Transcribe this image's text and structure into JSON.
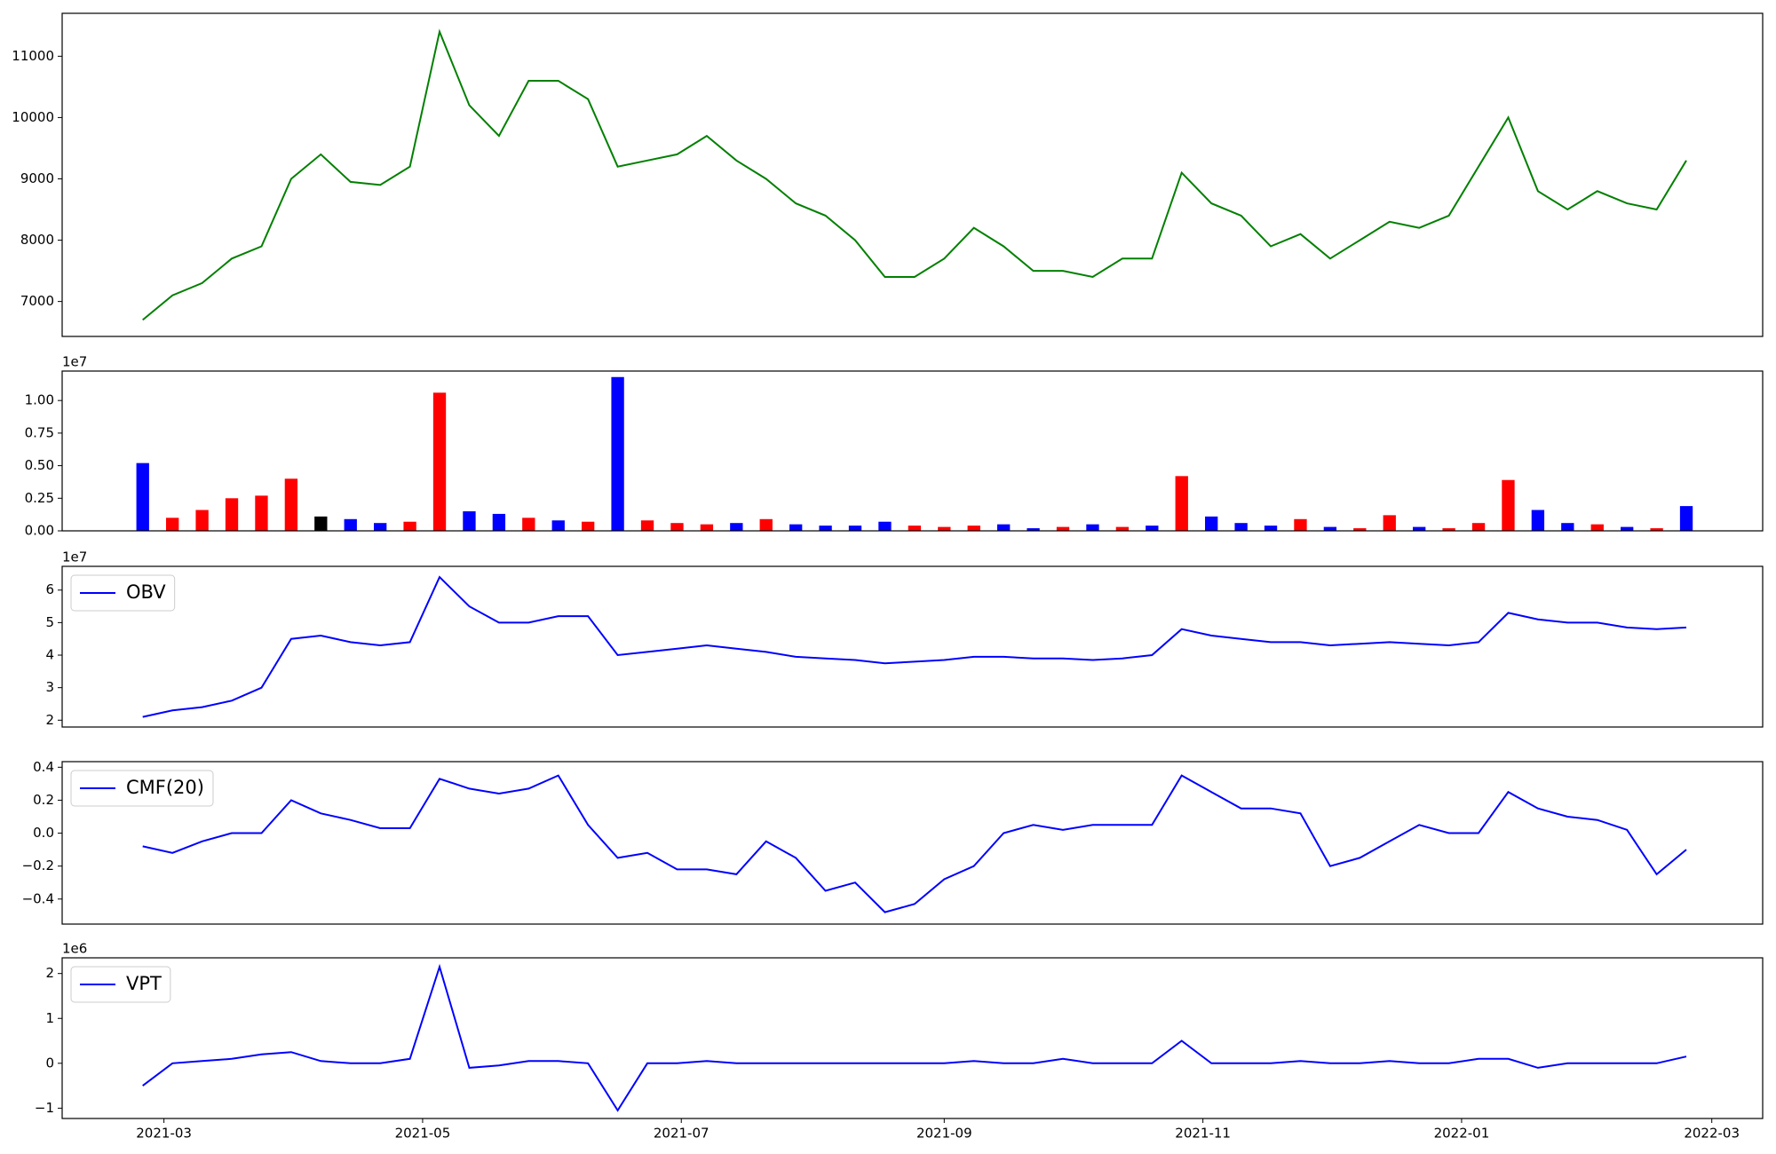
{
  "chart_data": [
    {
      "type": "line",
      "series": [
        {
          "color": "#008000",
          "values": [
            6700,
            7100,
            7300,
            7700,
            7900,
            9000,
            9400,
            8950,
            8900,
            9200,
            11400,
            10200,
            9700,
            10600,
            10600,
            10300,
            9200,
            9300,
            9400,
            9700,
            9300,
            9000,
            8600,
            8400,
            8000,
            7400,
            7400,
            7700,
            8200,
            7900,
            7500,
            7500,
            7400,
            7700,
            7700,
            9100,
            8600,
            8400,
            7900,
            8100,
            7700,
            8000,
            8300,
            8200,
            8400,
            9200,
            10000,
            8800,
            8500,
            8800,
            8600,
            8500,
            9300
          ]
        }
      ],
      "x": [
        "2021-02-24",
        "2021-03-03",
        "2021-03-10",
        "2021-03-17",
        "2021-03-24",
        "2021-03-31",
        "2021-04-07",
        "2021-04-14",
        "2021-04-21",
        "2021-04-28",
        "2021-05-05",
        "2021-05-12",
        "2021-05-19",
        "2021-05-26",
        "2021-06-02",
        "2021-06-09",
        "2021-06-16",
        "2021-06-23",
        "2021-06-30",
        "2021-07-07",
        "2021-07-14",
        "2021-07-21",
        "2021-07-28",
        "2021-08-04",
        "2021-08-11",
        "2021-08-18",
        "2021-08-25",
        "2021-09-01",
        "2021-09-08",
        "2021-09-15",
        "2021-09-22",
        "2021-09-29",
        "2021-10-06",
        "2021-10-13",
        "2021-10-20",
        "2021-10-27",
        "2021-11-03",
        "2021-11-10",
        "2021-11-17",
        "2021-11-24",
        "2021-12-01",
        "2021-12-08",
        "2021-12-15",
        "2021-12-22",
        "2021-12-29",
        "2022-01-05",
        "2022-01-12",
        "2022-01-19",
        "2022-01-26",
        "2022-02-02",
        "2022-02-09",
        "2022-02-16",
        "2022-02-23"
      ],
      "xlim": [
        "2021-02-05",
        "2022-03-13"
      ],
      "ylim": [
        6430,
        11700
      ],
      "yticks": [
        7000,
        8000,
        9000,
        10000,
        11000
      ]
    },
    {
      "type": "bar",
      "offset_label": "1e7",
      "series": [
        {
          "values": [
            5200000,
            1000000,
            1600000,
            2500000,
            2700000,
            4000000,
            1100000,
            900000,
            600000,
            700000,
            10600000,
            1500000,
            1300000,
            1000000,
            800000,
            700000,
            11800000,
            800000,
            600000,
            500000,
            600000,
            900000,
            500000,
            400000,
            400000,
            700000,
            400000,
            300000,
            400000,
            500000,
            200000,
            300000,
            500000,
            300000,
            400000,
            4200000,
            1100000,
            600000,
            400000,
            900000,
            300000,
            200000,
            1200000,
            300000,
            200000,
            600000,
            3900000,
            1600000,
            600000,
            500000,
            300000,
            200000,
            1900000
          ],
          "colors": [
            "blue",
            "red",
            "red",
            "red",
            "red",
            "red",
            "black",
            "blue",
            "blue",
            "red",
            "red",
            "blue",
            "blue",
            "red",
            "blue",
            "red",
            "blue",
            "red",
            "red",
            "red",
            "blue",
            "red",
            "blue",
            "blue",
            "blue",
            "blue",
            "red",
            "red",
            "red",
            "blue",
            "blue",
            "red",
            "blue",
            "red",
            "blue",
            "red",
            "blue",
            "blue",
            "blue",
            "red",
            "blue",
            "red",
            "red",
            "blue",
            "red",
            "red",
            "red",
            "blue",
            "blue",
            "red",
            "blue",
            "red",
            "blue"
          ]
        }
      ],
      "x": [
        "2021-02-24",
        "2021-03-03",
        "2021-03-10",
        "2021-03-17",
        "2021-03-24",
        "2021-03-31",
        "2021-04-07",
        "2021-04-14",
        "2021-04-21",
        "2021-04-28",
        "2021-05-05",
        "2021-05-12",
        "2021-05-19",
        "2021-05-26",
        "2021-06-02",
        "2021-06-09",
        "2021-06-16",
        "2021-06-23",
        "2021-06-30",
        "2021-07-07",
        "2021-07-14",
        "2021-07-21",
        "2021-07-28",
        "2021-08-04",
        "2021-08-11",
        "2021-08-18",
        "2021-08-25",
        "2021-09-01",
        "2021-09-08",
        "2021-09-15",
        "2021-09-22",
        "2021-09-29",
        "2021-10-06",
        "2021-10-13",
        "2021-10-20",
        "2021-10-27",
        "2021-11-03",
        "2021-11-10",
        "2021-11-17",
        "2021-11-24",
        "2021-12-01",
        "2021-12-08",
        "2021-12-15",
        "2021-12-22",
        "2021-12-29",
        "2022-01-05",
        "2022-01-12",
        "2022-01-19",
        "2022-01-26",
        "2022-02-02",
        "2022-02-09",
        "2022-02-16",
        "2022-02-23"
      ],
      "xlim": [
        "2021-02-05",
        "2022-03-13"
      ],
      "ylim": [
        0,
        12260000
      ],
      "yticks": [
        {
          "value": 0,
          "label": "0.00"
        },
        {
          "value": 2500000,
          "label": "0.25"
        },
        {
          "value": 5000000,
          "label": "0.50"
        },
        {
          "value": 7500000,
          "label": "0.75"
        },
        {
          "value": 10000000,
          "label": "1.00"
        }
      ]
    },
    {
      "type": "line",
      "offset_label": "1e7",
      "legend": "upper left",
      "series": [
        {
          "name": "OBV",
          "color": "#0000ff",
          "values": [
            21000000,
            23000000,
            24000000,
            26000000,
            30000000,
            45000000,
            46000000,
            44000000,
            43000000,
            44000000,
            64000000,
            55000000,
            50000000,
            50000000,
            52000000,
            52000000,
            40000000,
            41000000,
            42000000,
            43000000,
            42000000,
            41000000,
            39500000,
            39000000,
            38500000,
            37500000,
            38000000,
            38500000,
            39500000,
            39500000,
            39000000,
            39000000,
            38500000,
            39000000,
            40000000,
            48000000,
            46000000,
            45000000,
            44000000,
            44000000,
            43000000,
            43500000,
            44000000,
            43500000,
            43000000,
            44000000,
            53000000,
            51000000,
            50000000,
            50000000,
            48500000,
            48000000,
            48500000
          ]
        }
      ],
      "x": [
        "2021-02-24",
        "2021-03-03",
        "2021-03-10",
        "2021-03-17",
        "2021-03-24",
        "2021-03-31",
        "2021-04-07",
        "2021-04-14",
        "2021-04-21",
        "2021-04-28",
        "2021-05-05",
        "2021-05-12",
        "2021-05-19",
        "2021-05-26",
        "2021-06-02",
        "2021-06-09",
        "2021-06-16",
        "2021-06-23",
        "2021-06-30",
        "2021-07-07",
        "2021-07-14",
        "2021-07-21",
        "2021-07-28",
        "2021-08-04",
        "2021-08-11",
        "2021-08-18",
        "2021-08-25",
        "2021-09-01",
        "2021-09-08",
        "2021-09-15",
        "2021-09-22",
        "2021-09-29",
        "2021-10-06",
        "2021-10-13",
        "2021-10-20",
        "2021-10-27",
        "2021-11-03",
        "2021-11-10",
        "2021-11-17",
        "2021-11-24",
        "2021-12-01",
        "2021-12-08",
        "2021-12-15",
        "2021-12-22",
        "2021-12-29",
        "2022-01-05",
        "2022-01-12",
        "2022-01-19",
        "2022-01-26",
        "2022-02-02",
        "2022-02-09",
        "2022-02-16",
        "2022-02-23"
      ],
      "xlim": [
        "2021-02-05",
        "2022-03-13"
      ],
      "ylim": [
        17900000,
        67300000
      ],
      "yticks": [
        {
          "value": 20000000,
          "label": "2"
        },
        {
          "value": 30000000,
          "label": "3"
        },
        {
          "value": 40000000,
          "label": "4"
        },
        {
          "value": 50000000,
          "label": "5"
        },
        {
          "value": 60000000,
          "label": "6"
        }
      ]
    },
    {
      "type": "line",
      "legend": "upper left",
      "series": [
        {
          "name": "CMF(20)",
          "color": "#0000ff",
          "values": [
            -0.08,
            -0.12,
            -0.05,
            0.0,
            0.0,
            0.2,
            0.12,
            0.08,
            0.03,
            0.03,
            0.33,
            0.27,
            0.24,
            0.27,
            0.35,
            0.05,
            -0.15,
            -0.12,
            -0.22,
            -0.22,
            -0.25,
            -0.05,
            -0.15,
            -0.35,
            -0.3,
            -0.48,
            -0.43,
            -0.28,
            -0.2,
            0.0,
            0.05,
            0.02,
            0.05,
            0.05,
            0.05,
            0.35,
            0.25,
            0.15,
            0.15,
            0.12,
            -0.2,
            -0.15,
            -0.05,
            0.05,
            0.0,
            0.0,
            0.25,
            0.15,
            0.1,
            0.08,
            0.02,
            -0.25,
            -0.1
          ]
        }
      ],
      "x": [
        "2021-02-24",
        "2021-03-03",
        "2021-03-10",
        "2021-03-17",
        "2021-03-24",
        "2021-03-31",
        "2021-04-07",
        "2021-04-14",
        "2021-04-21",
        "2021-04-28",
        "2021-05-05",
        "2021-05-12",
        "2021-05-19",
        "2021-05-26",
        "2021-06-02",
        "2021-06-09",
        "2021-06-16",
        "2021-06-23",
        "2021-06-30",
        "2021-07-07",
        "2021-07-14",
        "2021-07-21",
        "2021-07-28",
        "2021-08-04",
        "2021-08-11",
        "2021-08-18",
        "2021-08-25",
        "2021-09-01",
        "2021-09-08",
        "2021-09-15",
        "2021-09-22",
        "2021-09-29",
        "2021-10-06",
        "2021-10-13",
        "2021-10-20",
        "2021-10-27",
        "2021-11-03",
        "2021-11-10",
        "2021-11-17",
        "2021-11-24",
        "2021-12-01",
        "2021-12-08",
        "2021-12-15",
        "2021-12-22",
        "2021-12-29",
        "2022-01-05",
        "2022-01-12",
        "2022-01-19",
        "2022-01-26",
        "2022-02-02",
        "2022-02-09",
        "2022-02-16",
        "2022-02-23"
      ],
      "xlim": [
        "2021-02-05",
        "2022-03-13"
      ],
      "ylim": [
        -0.552,
        0.434
      ],
      "yticks": [
        {
          "value": -0.4,
          "label": "−0.4"
        },
        {
          "value": -0.2,
          "label": "−0.2"
        },
        {
          "value": 0,
          "label": "0.0"
        },
        0.2,
        0.4
      ]
    },
    {
      "type": "line",
      "offset_label": "1e6",
      "legend": "upper left",
      "series": [
        {
          "name": "VPT",
          "color": "#0000ff",
          "values": [
            -500000,
            0,
            50000,
            100000,
            200000,
            250000,
            50000,
            0,
            0,
            100000,
            2150000,
            -100000,
            -50000,
            50000,
            50000,
            0,
            -1050000,
            0,
            0,
            50000,
            0,
            0,
            0,
            0,
            0,
            0,
            0,
            0,
            50000,
            0,
            0,
            100000,
            0,
            0,
            0,
            500000,
            0,
            0,
            0,
            50000,
            0,
            0,
            50000,
            0,
            0,
            100000,
            100000,
            -100000,
            0,
            0,
            0,
            0,
            150000
          ]
        }
      ],
      "x": [
        "2021-02-24",
        "2021-03-03",
        "2021-03-10",
        "2021-03-17",
        "2021-03-24",
        "2021-03-31",
        "2021-04-07",
        "2021-04-14",
        "2021-04-21",
        "2021-04-28",
        "2021-05-05",
        "2021-05-12",
        "2021-05-19",
        "2021-05-26",
        "2021-06-02",
        "2021-06-09",
        "2021-06-16",
        "2021-06-23",
        "2021-06-30",
        "2021-07-07",
        "2021-07-14",
        "2021-07-21",
        "2021-07-28",
        "2021-08-04",
        "2021-08-11",
        "2021-08-18",
        "2021-08-25",
        "2021-09-01",
        "2021-09-08",
        "2021-09-15",
        "2021-09-22",
        "2021-09-29",
        "2021-10-06",
        "2021-10-13",
        "2021-10-20",
        "2021-10-27",
        "2021-11-03",
        "2021-11-10",
        "2021-11-17",
        "2021-11-24",
        "2021-12-01",
        "2021-12-08",
        "2021-12-15",
        "2021-12-22",
        "2021-12-29",
        "2022-01-05",
        "2022-01-12",
        "2022-01-19",
        "2022-01-26",
        "2022-02-02",
        "2022-02-09",
        "2022-02-16",
        "2022-02-23"
      ],
      "xlim": [
        "2021-02-05",
        "2022-03-13"
      ],
      "ylim": [
        -1230000,
        2350000
      ],
      "yticks": [
        {
          "value": -1000000,
          "label": "−1"
        },
        {
          "value": 0,
          "label": "0"
        },
        {
          "value": 1000000,
          "label": "1"
        },
        {
          "value": 2000000,
          "label": "2"
        }
      ],
      "xticks": [
        {
          "value": "2021-03-01",
          "label": "2021-03"
        },
        {
          "value": "2021-05-01",
          "label": "2021-05"
        },
        {
          "value": "2021-07-01",
          "label": "2021-07"
        },
        {
          "value": "2021-09-01",
          "label": "2021-09"
        },
        {
          "value": "2021-11-01",
          "label": "2021-11"
        },
        {
          "value": "2022-01-01",
          "label": "2022-01"
        },
        {
          "value": "2022-03-01",
          "label": "2022-03"
        }
      ]
    }
  ]
}
